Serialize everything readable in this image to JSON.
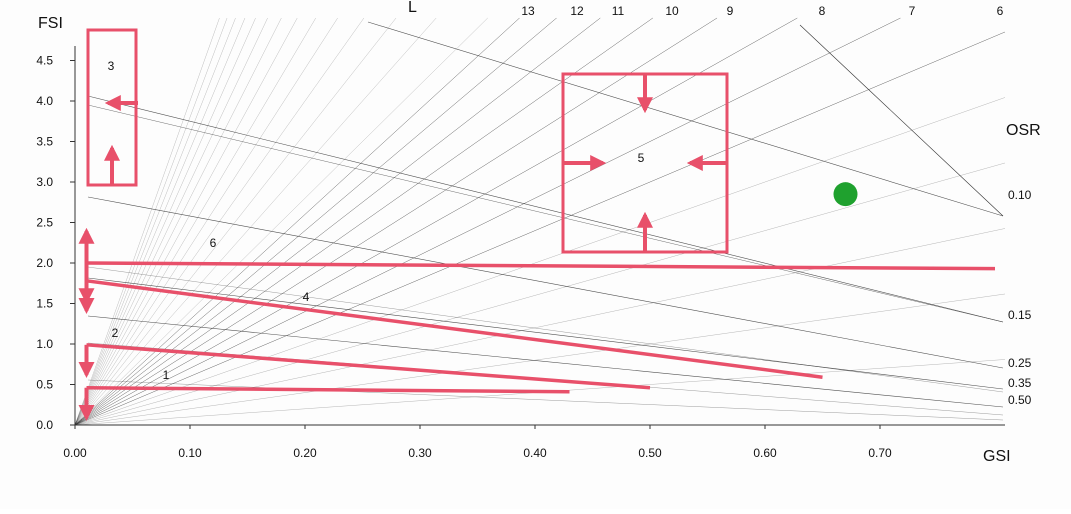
{
  "chart_data": {
    "type": "line",
    "title": "",
    "xlabel": "GSI",
    "ylabel": "FSI",
    "xlim": [
      0,
      0.8
    ],
    "ylim": [
      0,
      4.8
    ],
    "x_ticks": [
      "0.00",
      "0.10",
      "0.20",
      "0.30",
      "0.40",
      "0.50",
      "0.60",
      "0.70"
    ],
    "y_ticks": [
      "0.0",
      "0.5",
      "1.0",
      "1.5",
      "2.0",
      "2.5",
      "3.0",
      "3.5",
      "4.0",
      "4.5"
    ],
    "grid": false,
    "layers_label": "L",
    "layer_lines": [
      {
        "label": "13",
        "value": 13
      },
      {
        "label": "12",
        "value": 12
      },
      {
        "label": "11",
        "value": 11
      },
      {
        "label": "10",
        "value": 10
      },
      {
        "label": "9",
        "value": 9
      },
      {
        "label": "8",
        "value": 8
      },
      {
        "label": "7",
        "value": 7
      },
      {
        "label": "6",
        "value": 6
      }
    ],
    "osr_label": "OSR",
    "osr_lines": [
      {
        "label": "0.10",
        "value": 0.1
      },
      {
        "label": "0.15",
        "value": 0.15
      },
      {
        "label": "0.25",
        "value": 0.25
      },
      {
        "label": "0.35",
        "value": 0.35
      },
      {
        "label": "0.50",
        "value": 0.5
      }
    ],
    "zones": [
      {
        "label": "1",
        "type": "line",
        "from": [
          0.01,
          0.46
        ],
        "to": [
          0.43,
          0.41
        ]
      },
      {
        "label": "2",
        "type": "line",
        "from": [
          0.01,
          0.99
        ],
        "to": [
          0.5,
          0.46
        ]
      },
      {
        "label": "4",
        "type": "line",
        "from": [
          0.01,
          1.78
        ],
        "to": [
          0.65,
          0.59
        ]
      },
      {
        "label": "6",
        "type": "line",
        "from": [
          0.01,
          2.0
        ],
        "to": [
          0.8,
          1.93
        ]
      },
      {
        "label": "3",
        "type": "box",
        "x": [
          0.01,
          0.05
        ],
        "y": [
          3.0,
          4.9
        ]
      },
      {
        "label": "5",
        "type": "box",
        "x": [
          0.42,
          0.56
        ],
        "y": [
          2.15,
          4.35
        ]
      }
    ],
    "marker": {
      "x": 0.67,
      "y": 2.85,
      "color": "#1fa12e"
    },
    "colors": {
      "zone": "#e8506a",
      "line": "#333333",
      "marker": "#1fa12e"
    }
  }
}
